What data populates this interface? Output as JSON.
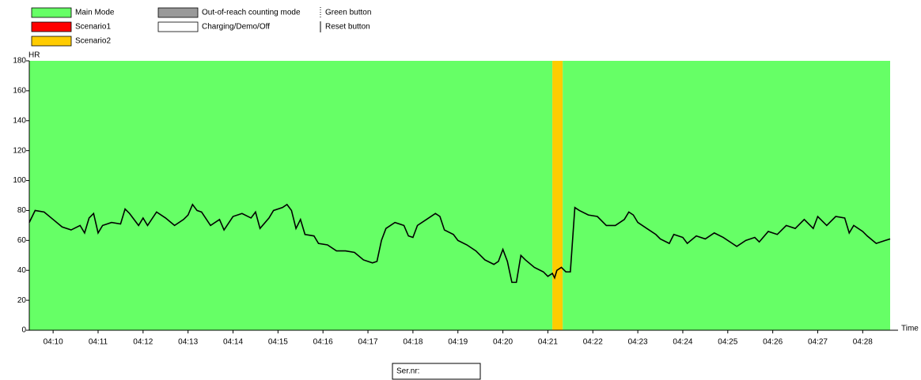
{
  "chart_data": {
    "type": "line",
    "y_label": "HR",
    "x_label": "Time",
    "legend": [
      {
        "name": "Main Mode",
        "color": "#66ff66",
        "kind": "box"
      },
      {
        "name": "Scenario1",
        "color": "#ff0000",
        "kind": "box"
      },
      {
        "name": "Scenario2",
        "color": "#ffcc00",
        "kind": "box"
      },
      {
        "name": "Out-of-reach counting mode",
        "color": "#999999",
        "kind": "box"
      },
      {
        "name": "Charging/Demo/Off",
        "color": "#ffffff",
        "kind": "box"
      },
      {
        "name": "Green button",
        "color": "#000000",
        "kind": "dotted"
      },
      {
        "name": "Reset button",
        "color": "#000000",
        "kind": "solid"
      }
    ],
    "regions": [
      {
        "start": 9.47,
        "end": 21.1,
        "color": "#66ff66"
      },
      {
        "start": 21.1,
        "end": 21.33,
        "color": "#ffcc00"
      },
      {
        "start": 21.33,
        "end": 28.61,
        "color": "#66ff66"
      }
    ],
    "x": [
      9.47,
      9.6,
      9.8,
      10.0,
      10.2,
      10.4,
      10.6,
      10.7,
      10.8,
      10.9,
      11.0,
      11.1,
      11.3,
      11.5,
      11.6,
      11.7,
      11.9,
      12.0,
      12.1,
      12.3,
      12.5,
      12.7,
      12.9,
      13.0,
      13.1,
      13.2,
      13.3,
      13.5,
      13.7,
      13.8,
      14.0,
      14.2,
      14.4,
      14.5,
      14.6,
      14.8,
      14.9,
      15.1,
      15.2,
      15.3,
      15.4,
      15.5,
      15.6,
      15.8,
      15.9,
      16.1,
      16.3,
      16.5,
      16.7,
      16.9,
      17.1,
      17.2,
      17.3,
      17.4,
      17.6,
      17.8,
      17.9,
      18.0,
      18.1,
      18.3,
      18.5,
      18.6,
      18.7,
      18.9,
      19.0,
      19.2,
      19.4,
      19.6,
      19.8,
      19.9,
      20.0,
      20.1,
      20.2,
      20.3,
      20.4,
      20.5,
      20.7,
      20.9,
      21.0,
      21.1,
      21.15,
      21.2,
      21.3,
      21.4,
      21.5,
      21.6,
      21.7,
      21.9,
      22.1,
      22.3,
      22.5,
      22.7,
      22.8,
      22.9,
      23.0,
      23.2,
      23.4,
      23.5,
      23.7,
      23.8,
      24.0,
      24.1,
      24.3,
      24.5,
      24.7,
      24.9,
      25.1,
      25.2,
      25.4,
      25.6,
      25.7,
      25.9,
      26.1,
      26.3,
      26.5,
      26.7,
      26.9,
      27.0,
      27.2,
      27.4,
      27.6,
      27.7,
      27.8,
      28.0,
      28.1,
      28.3,
      28.5,
      28.61
    ],
    "values": [
      72,
      80,
      79,
      74,
      69,
      67,
      70,
      65,
      75,
      78,
      65,
      70,
      72,
      71,
      81,
      78,
      70,
      75,
      70,
      79,
      75,
      70,
      74,
      77,
      84,
      80,
      79,
      70,
      74,
      67,
      76,
      78,
      75,
      79,
      68,
      75,
      80,
      82,
      84,
      80,
      68,
      74,
      64,
      63,
      58,
      57,
      53,
      53,
      52,
      47,
      45,
      46,
      60,
      68,
      72,
      70,
      63,
      62,
      70,
      74,
      78,
      76,
      67,
      64,
      60,
      57,
      53,
      47,
      44,
      46,
      54,
      46,
      32,
      32,
      50,
      47,
      42,
      39,
      36,
      38,
      35,
      40,
      42,
      39,
      39,
      82,
      80,
      77,
      76,
      70,
      70,
      74,
      79,
      77,
      72,
      68,
      64,
      61,
      58,
      64,
      62,
      58,
      63,
      61,
      65,
      62,
      58,
      56,
      60,
      62,
      59,
      66,
      64,
      70,
      68,
      74,
      68,
      76,
      70,
      76,
      75,
      65,
      70,
      66,
      63,
      58,
      60,
      61
    ],
    "color": "#000000",
    "xlim": [
      9.47,
      28.61
    ],
    "xticks": [
      {
        "value": 10,
        "label": "04:10"
      },
      {
        "value": 11,
        "label": "04:11"
      },
      {
        "value": 12,
        "label": "04:12"
      },
      {
        "value": 13,
        "label": "04:13"
      },
      {
        "value": 14,
        "label": "04:14"
      },
      {
        "value": 15,
        "label": "04:15"
      },
      {
        "value": 16,
        "label": "04:16"
      },
      {
        "value": 17,
        "label": "04:17"
      },
      {
        "value": 18,
        "label": "04:18"
      },
      {
        "value": 19,
        "label": "04:19"
      },
      {
        "value": 20,
        "label": "04:20"
      },
      {
        "value": 21,
        "label": "04:21"
      },
      {
        "value": 22,
        "label": "04:22"
      },
      {
        "value": 23,
        "label": "04:23"
      },
      {
        "value": 24,
        "label": "04:24"
      },
      {
        "value": 25,
        "label": "04:25"
      },
      {
        "value": 26,
        "label": "04:26"
      },
      {
        "value": 27,
        "label": "04:27"
      },
      {
        "value": 28,
        "label": "04:28"
      }
    ],
    "ylim": [
      0,
      180
    ],
    "yticks": [
      0,
      20,
      40,
      60,
      80,
      100,
      120,
      140,
      160,
      180
    ]
  },
  "footer": {
    "serial_label": "Ser.nr:"
  }
}
